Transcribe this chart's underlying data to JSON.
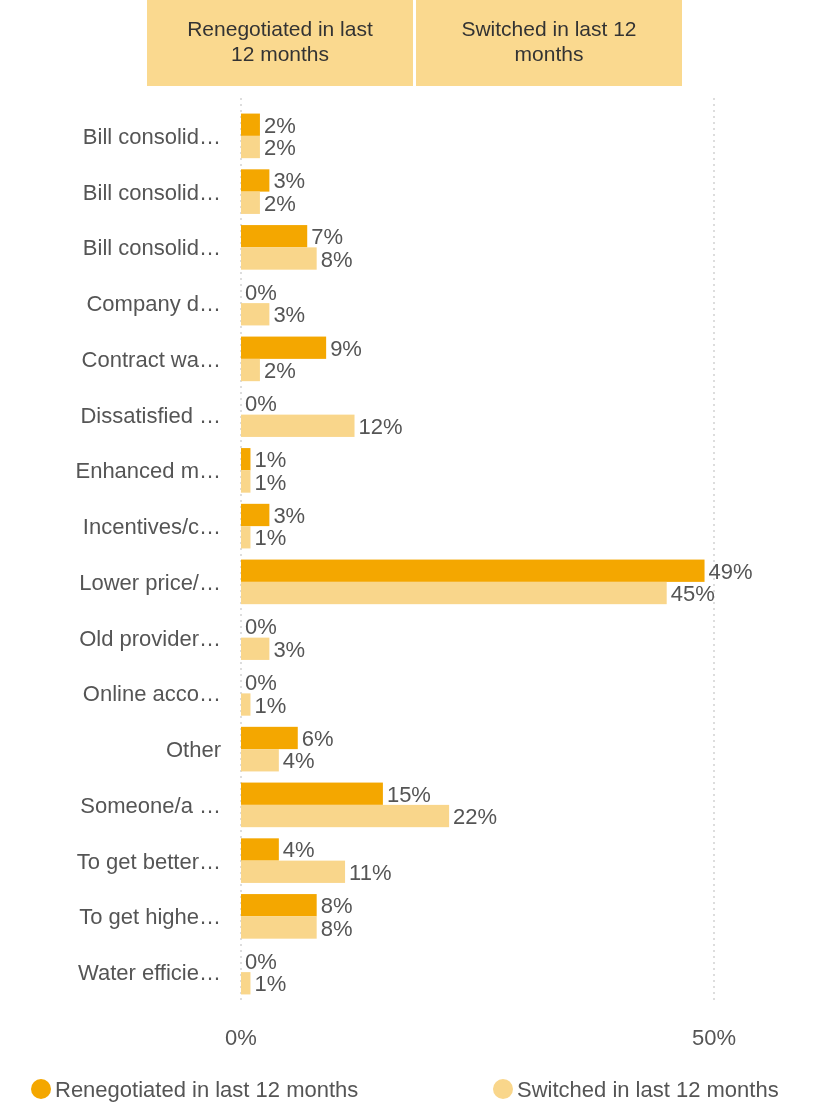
{
  "chart_data": {
    "type": "bar",
    "orientation": "horizontal",
    "annotations": [
      "Renegotiated in last 12 months",
      "Switched in last 12 months"
    ],
    "categories": [
      "Bill consolid…",
      "Bill consolid…",
      "Bill consolid…",
      "Company d…",
      "Contract wa…",
      "Dissatisfied …",
      "Enhanced m…",
      "Incentives/c…",
      "Lower price/…",
      "Old provider…",
      "Online acco…",
      "Other",
      "Someone/a …",
      "To get better…",
      "To get highe…",
      "Water efficie…"
    ],
    "series": [
      {
        "name": "Renegotiated in last 12 months",
        "color": "#f4a700",
        "values": [
          2,
          3,
          7,
          0,
          9,
          0,
          1,
          3,
          49,
          0,
          0,
          6,
          15,
          4,
          8,
          0
        ],
        "value_labels": [
          "2%",
          "3%",
          "7%",
          "0%",
          "9%",
          "0%",
          "1%",
          "3%",
          "49%",
          "0%",
          "0%",
          "6%",
          "15%",
          "4%",
          "8%",
          "0%"
        ]
      },
      {
        "name": "Switched in last 12 months",
        "color": "#f9d68b",
        "values": [
          2,
          2,
          8,
          3,
          2,
          12,
          1,
          1,
          45,
          3,
          1,
          4,
          22,
          11,
          8,
          1
        ],
        "value_labels": [
          "2%",
          "2%",
          "8%",
          "3%",
          "2%",
          "12%",
          "1%",
          "1%",
          "45%",
          "3%",
          "1%",
          "4%",
          "22%",
          "11%",
          "8%",
          "1%"
        ]
      }
    ],
    "xlim": [
      0,
      50
    ],
    "xticks": [
      {
        "value": 0,
        "label": "0%"
      },
      {
        "value": 50,
        "label": "50%"
      }
    ],
    "grid": "x",
    "legend": "bottom"
  }
}
